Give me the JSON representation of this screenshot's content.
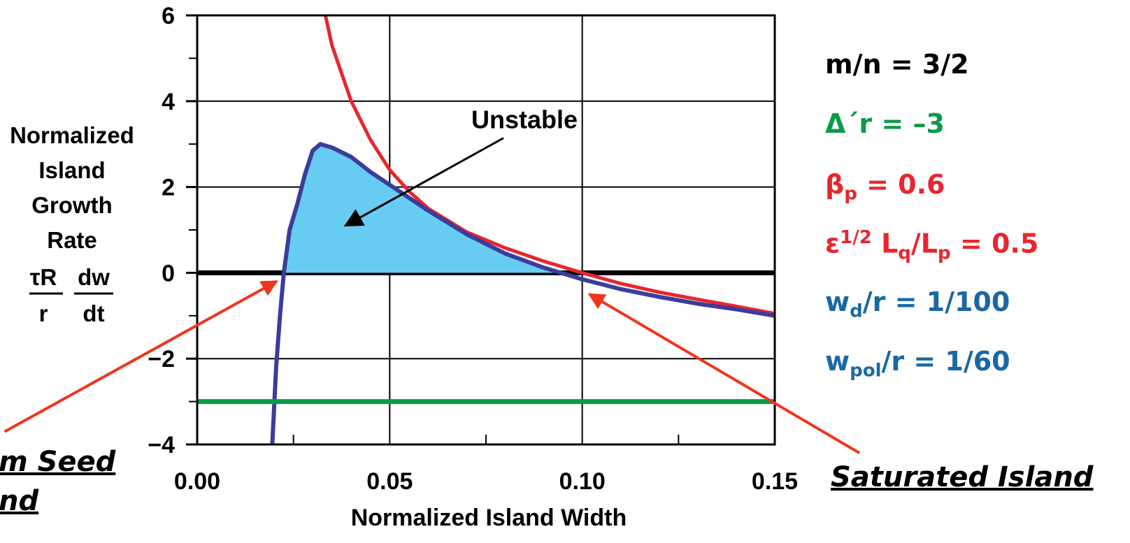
{
  "chart_data": {
    "type": "line",
    "xlabel": "Normalized Island Width",
    "ylabel_lines": [
      "Normalized",
      "Island",
      "Growth",
      "Rate"
    ],
    "ylabel_formula": {
      "left_num": "τR",
      "left_den": "r",
      "right_num": "dw",
      "right_den": "dt"
    },
    "xlim": [
      0,
      0.15
    ],
    "ylim": [
      -4,
      6
    ],
    "x_ticks": [
      "0.00",
      "0.05",
      "0.10",
      "0.15"
    ],
    "y_ticks": [
      "−4",
      "−2",
      "0",
      "2",
      "4",
      "6"
    ],
    "grid": true,
    "series": [
      {
        "color": "#e8262d",
        "x": [
          0.0333,
          0.035,
          0.04,
          0.045,
          0.05,
          0.055,
          0.06,
          0.07,
          0.08,
          0.09,
          0.1,
          0.11,
          0.12,
          0.13,
          0.14,
          0.15
        ],
        "y": [
          6.0,
          5.3,
          4.0,
          3.1,
          2.4,
          1.9,
          1.5,
          0.95,
          0.58,
          0.27,
          0.0,
          -0.25,
          -0.45,
          -0.62,
          -0.78,
          -0.95
        ]
      },
      {
        "color": "#3a3d9c",
        "x": [
          0.0195,
          0.0205,
          0.0215,
          0.0225,
          0.024,
          0.026,
          0.028,
          0.03,
          0.032,
          0.035,
          0.04,
          0.045,
          0.05,
          0.06,
          0.07,
          0.08,
          0.09,
          0.1,
          0.11,
          0.12,
          0.13,
          0.14,
          0.15
        ],
        "y": [
          -4.0,
          -2.2,
          -1.0,
          0.0,
          1.0,
          1.6,
          2.3,
          2.85,
          3.0,
          2.92,
          2.7,
          2.35,
          2.05,
          1.45,
          0.9,
          0.45,
          0.12,
          -0.15,
          -0.38,
          -0.56,
          -0.72,
          -0.85,
          -1.0
        ]
      },
      {
        "color": "#0b9b48",
        "x": [
          0.0,
          0.15
        ],
        "y": [
          -3.0,
          -3.0
        ]
      }
    ],
    "fill_between": {
      "color": "#66ccf2",
      "lower_y": 0
    },
    "annotations": [
      {
        "text": "Unstable",
        "text_x": 0.085,
        "text_y": 3.5,
        "arrow_x": 0.0385,
        "arrow_y": 1.1
      }
    ],
    "markers": [
      {
        "target_x": 0.0225,
        "target_y": 0,
        "from_x": -0.05,
        "from_y": -3.7
      },
      {
        "target_x": 0.1,
        "target_y": -0.3,
        "from_x": 0.172,
        "from_y": -4.2
      }
    ]
  },
  "side_labels": [
    {
      "id": "mn",
      "base": "m/n = 3/2",
      "color": "#000000"
    },
    {
      "id": "delta",
      "base": "Δ´r = –3",
      "color": "#0b9b48"
    },
    {
      "id": "beta",
      "base": "β",
      "sub": "p",
      "tail": " = 0.6",
      "color": "#e8262d"
    },
    {
      "id": "eps",
      "base": "ε",
      "sup": "1/2",
      "mid": " L",
      "sub": "q",
      "mid2": "/L",
      "sub2": "p",
      "tail": " = 0.5",
      "color": "#e8262d"
    },
    {
      "id": "wd",
      "base": "w",
      "sub": "d",
      "tail": "/r = 1/100",
      "color": "#1a68a3"
    },
    {
      "id": "wpol",
      "base": "w",
      "sub": "pol",
      "tail": "/r = 1/60",
      "color": "#1a68a3"
    }
  ],
  "marker_labels": {
    "seed_line1": "m Seed",
    "seed_line2": "nd",
    "saturated": "Saturated Island",
    "color": "#000000"
  },
  "colors": {
    "arrow_red": "#f2341c",
    "axis": "#000000"
  }
}
